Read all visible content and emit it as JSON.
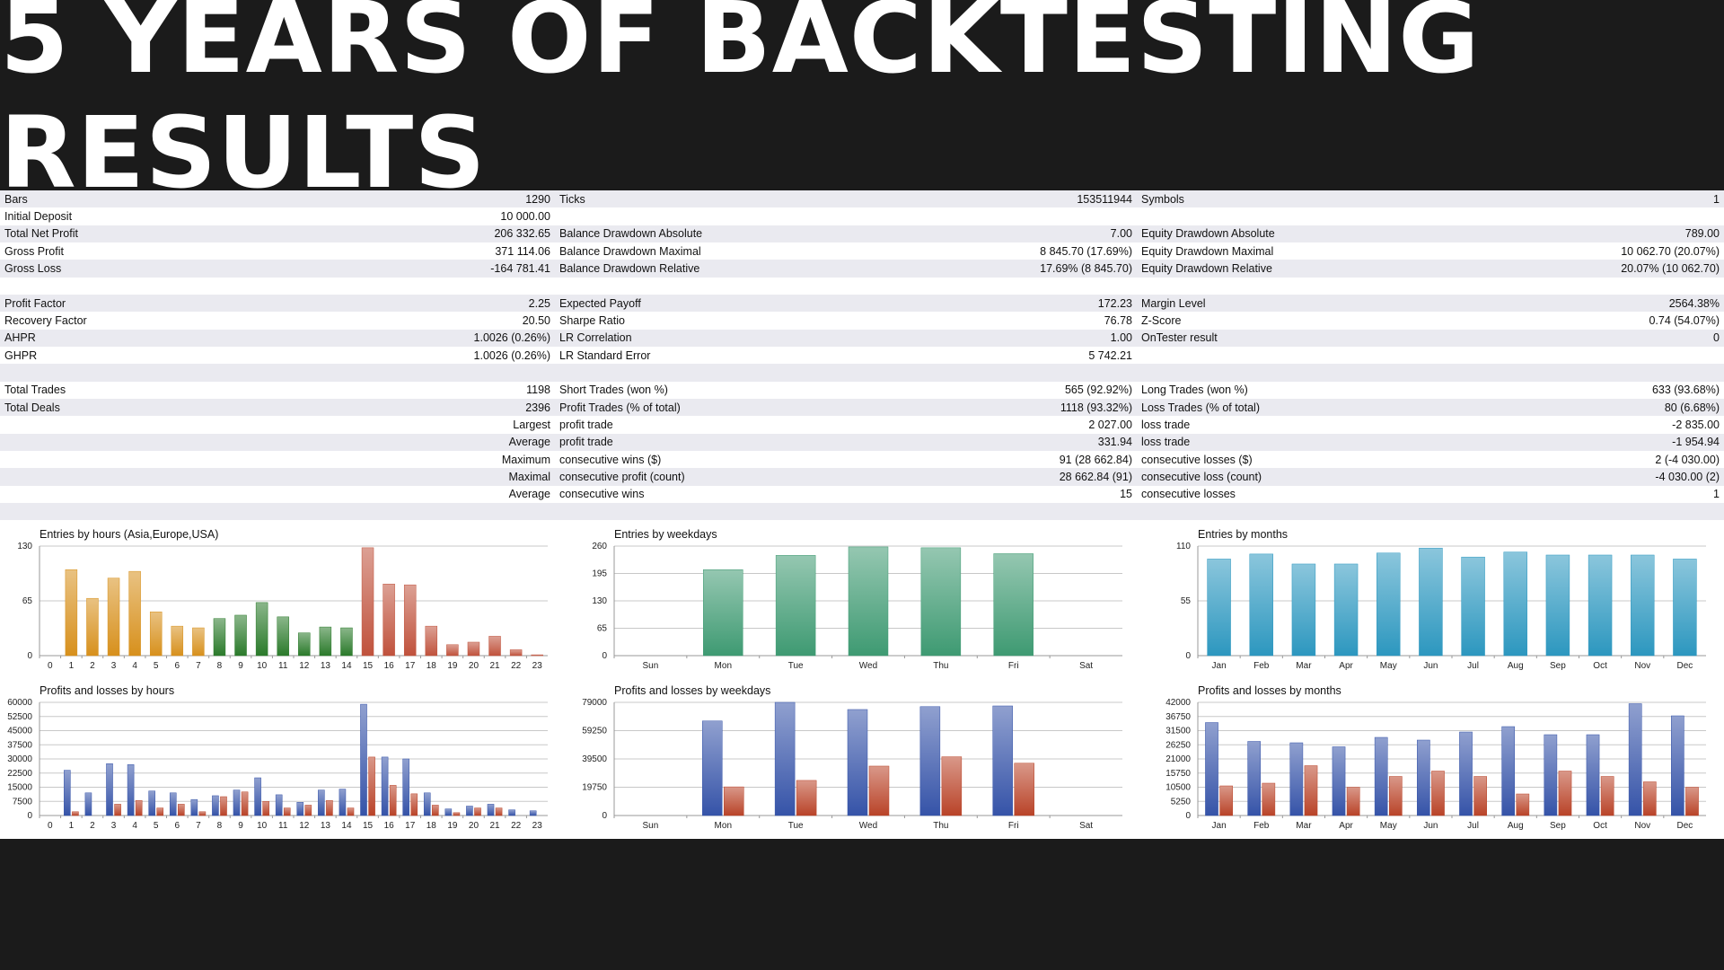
{
  "title": "5 YEARS OF BACKTESTING RESULTS",
  "stats": [
    [
      "Bars",
      "1290",
      "Ticks",
      "153511944",
      "Symbols",
      "1"
    ],
    [
      "Initial Deposit",
      "10 000.00",
      "",
      "",
      "",
      ""
    ],
    [
      "Total Net Profit",
      "206 332.65",
      "Balance Drawdown Absolute",
      "7.00",
      "Equity Drawdown Absolute",
      "789.00"
    ],
    [
      "Gross Profit",
      "371 114.06",
      "Balance Drawdown Maximal",
      "8 845.70 (17.69%)",
      "Equity Drawdown Maximal",
      "10 062.70 (20.07%)"
    ],
    [
      "Gross Loss",
      "-164 781.41",
      "Balance Drawdown Relative",
      "17.69% (8 845.70)",
      "Equity Drawdown Relative",
      "20.07% (10 062.70)"
    ],
    [
      "",
      "",
      "",
      "",
      "",
      ""
    ],
    [
      "Profit Factor",
      "2.25",
      "Expected Payoff",
      "172.23",
      "Margin Level",
      "2564.38%"
    ],
    [
      "Recovery Factor",
      "20.50",
      "Sharpe Ratio",
      "76.78",
      "Z-Score",
      "0.74 (54.07%)"
    ],
    [
      "AHPR",
      "1.0026 (0.26%)",
      "LR Correlation",
      "1.00",
      "OnTester result",
      "0"
    ],
    [
      "GHPR",
      "1.0026 (0.26%)",
      "LR Standard Error",
      "5 742.21",
      "",
      ""
    ],
    [
      "",
      "",
      "",
      "",
      "",
      ""
    ],
    [
      "Total Trades",
      "1198",
      "Short Trades (won %)",
      "565 (92.92%)",
      "Long Trades (won %)",
      "633 (93.68%)"
    ],
    [
      "Total Deals",
      "2396",
      "Profit Trades (% of total)",
      "1118 (93.32%)",
      "Loss Trades (% of total)",
      "80 (6.68%)"
    ],
    [
      "",
      "Largest",
      "profit trade",
      "2 027.00",
      "loss trade",
      "-2 835.00"
    ],
    [
      "",
      "Average",
      "profit trade",
      "331.94",
      "loss trade",
      "-1 954.94"
    ],
    [
      "",
      "Maximum",
      "consecutive wins ($)",
      "91 (28 662.84)",
      "consecutive losses ($)",
      "2 (-4 030.00)"
    ],
    [
      "",
      "Maximal",
      "consecutive profit (count)",
      "28 662.84 (91)",
      "consecutive loss (count)",
      "-4 030.00 (2)"
    ],
    [
      "",
      "Average",
      "consecutive wins",
      "15",
      "consecutive losses",
      "1"
    ],
    [
      "",
      "",
      "",
      "",
      "",
      ""
    ]
  ],
  "colors": {
    "orange": "#d7901c",
    "green": "#2a7a2a",
    "red": "#c0523c",
    "teal": "#3e9a72",
    "cyan": "#2c97bf",
    "blue": "#3553a8",
    "loss": "#b94328"
  },
  "chart_data": [
    {
      "type": "bar",
      "title": "Entries by hours (Asia,Europe,USA)",
      "categories": [
        "0",
        "1",
        "2",
        "3",
        "4",
        "5",
        "6",
        "7",
        "8",
        "9",
        "10",
        "11",
        "12",
        "13",
        "14",
        "15",
        "16",
        "17",
        "18",
        "19",
        "20",
        "21",
        "22",
        "23"
      ],
      "ylim": [
        0,
        130
      ],
      "yticks": [
        "0",
        "65",
        "130"
      ],
      "series": [
        {
          "values": [
            0,
            102,
            68,
            92,
            100,
            52,
            35,
            33,
            44,
            48,
            63,
            46,
            27,
            34,
            33,
            128,
            85,
            84,
            35,
            13,
            16,
            23,
            7,
            1
          ]
        }
      ],
      "bar_colors": [
        "orange",
        "orange",
        "orange",
        "orange",
        "orange",
        "orange",
        "orange",
        "orange",
        "green",
        "green",
        "green",
        "green",
        "green",
        "green",
        "green",
        "red",
        "red",
        "red",
        "red",
        "red",
        "red",
        "red",
        "red",
        "red"
      ],
      "grid": true
    },
    {
      "type": "bar",
      "title": "Entries by weekdays",
      "categories": [
        "Sun",
        "Mon",
        "Tue",
        "Wed",
        "Thu",
        "Fri",
        "Sat"
      ],
      "ylim": [
        0,
        260
      ],
      "yticks": [
        "0",
        "65",
        "130",
        "195",
        "260"
      ],
      "series": [
        {
          "values": [
            0,
            204,
            238,
            258,
            256,
            242,
            0
          ]
        }
      ],
      "bar_colors": [
        "teal",
        "teal",
        "teal",
        "teal",
        "teal",
        "teal",
        "teal"
      ],
      "grid": true
    },
    {
      "type": "bar",
      "title": "Entries by months",
      "categories": [
        "Jan",
        "Feb",
        "Mar",
        "Apr",
        "May",
        "Jun",
        "Jul",
        "Aug",
        "Sep",
        "Oct",
        "Nov",
        "Dec"
      ],
      "ylim": [
        0,
        110
      ],
      "yticks": [
        "0",
        "55",
        "110"
      ],
      "series": [
        {
          "values": [
            97,
            102,
            92,
            92,
            103,
            108,
            99,
            104,
            101,
            101,
            101,
            97
          ]
        }
      ],
      "bar_colors": [
        "cyan",
        "cyan",
        "cyan",
        "cyan",
        "cyan",
        "cyan",
        "cyan",
        "cyan",
        "cyan",
        "cyan",
        "cyan",
        "cyan"
      ],
      "grid": true
    },
    {
      "type": "bar",
      "title": "Profits and losses by hours",
      "categories": [
        "0",
        "1",
        "2",
        "3",
        "4",
        "5",
        "6",
        "7",
        "8",
        "9",
        "10",
        "11",
        "12",
        "13",
        "14",
        "15",
        "16",
        "17",
        "18",
        "19",
        "20",
        "21",
        "22",
        "23"
      ],
      "ylim": [
        0,
        60000
      ],
      "yticks": [
        "0",
        "7500",
        "15000",
        "22500",
        "30000",
        "37500",
        "45000",
        "52500",
        "60000"
      ],
      "series": [
        {
          "color": "blue",
          "values": [
            0,
            24000,
            12000,
            27500,
            27000,
            13000,
            12000,
            8500,
            10500,
            13500,
            20000,
            11000,
            7000,
            13500,
            14000,
            59000,
            31000,
            30000,
            12000,
            3500,
            5000,
            6000,
            3000,
            2500
          ]
        },
        {
          "color": "loss",
          "values": [
            0,
            2000,
            0,
            6000,
            8000,
            4000,
            6000,
            2000,
            10000,
            12500,
            7500,
            4000,
            5500,
            8000,
            4000,
            31000,
            16000,
            11500,
            5500,
            1500,
            4000,
            4000,
            0,
            0
          ]
        }
      ],
      "grid": true
    },
    {
      "type": "bar",
      "title": "Profits and losses by weekdays",
      "categories": [
        "Sun",
        "Mon",
        "Tue",
        "Wed",
        "Thu",
        "Fri",
        "Sat"
      ],
      "ylim": [
        0,
        79000
      ],
      "yticks": [
        "0",
        "19750",
        "39500",
        "59250",
        "79000"
      ],
      "series": [
        {
          "color": "blue",
          "values": [
            0,
            66000,
            79000,
            74000,
            76000,
            76500,
            0
          ]
        },
        {
          "color": "loss",
          "values": [
            0,
            20000,
            24500,
            34500,
            41000,
            36500,
            0
          ]
        }
      ],
      "grid": true
    },
    {
      "type": "bar",
      "title": "Profits and losses by months",
      "categories": [
        "Jan",
        "Feb",
        "Mar",
        "Apr",
        "May",
        "Jun",
        "Jul",
        "Aug",
        "Sep",
        "Oct",
        "Nov",
        "Dec"
      ],
      "ylim": [
        0,
        42000
      ],
      "yticks": [
        "0",
        "5250",
        "10500",
        "15750",
        "21000",
        "26250",
        "31500",
        "36750",
        "42000"
      ],
      "series": [
        {
          "color": "blue",
          "values": [
            34500,
            27500,
            27000,
            25500,
            29000,
            28000,
            31000,
            33000,
            30000,
            30000,
            41500,
            37000
          ]
        },
        {
          "color": "loss",
          "values": [
            11000,
            12000,
            18500,
            10500,
            14500,
            16500,
            14500,
            8000,
            16500,
            14500,
            12500,
            10500
          ]
        }
      ],
      "grid": true
    }
  ]
}
